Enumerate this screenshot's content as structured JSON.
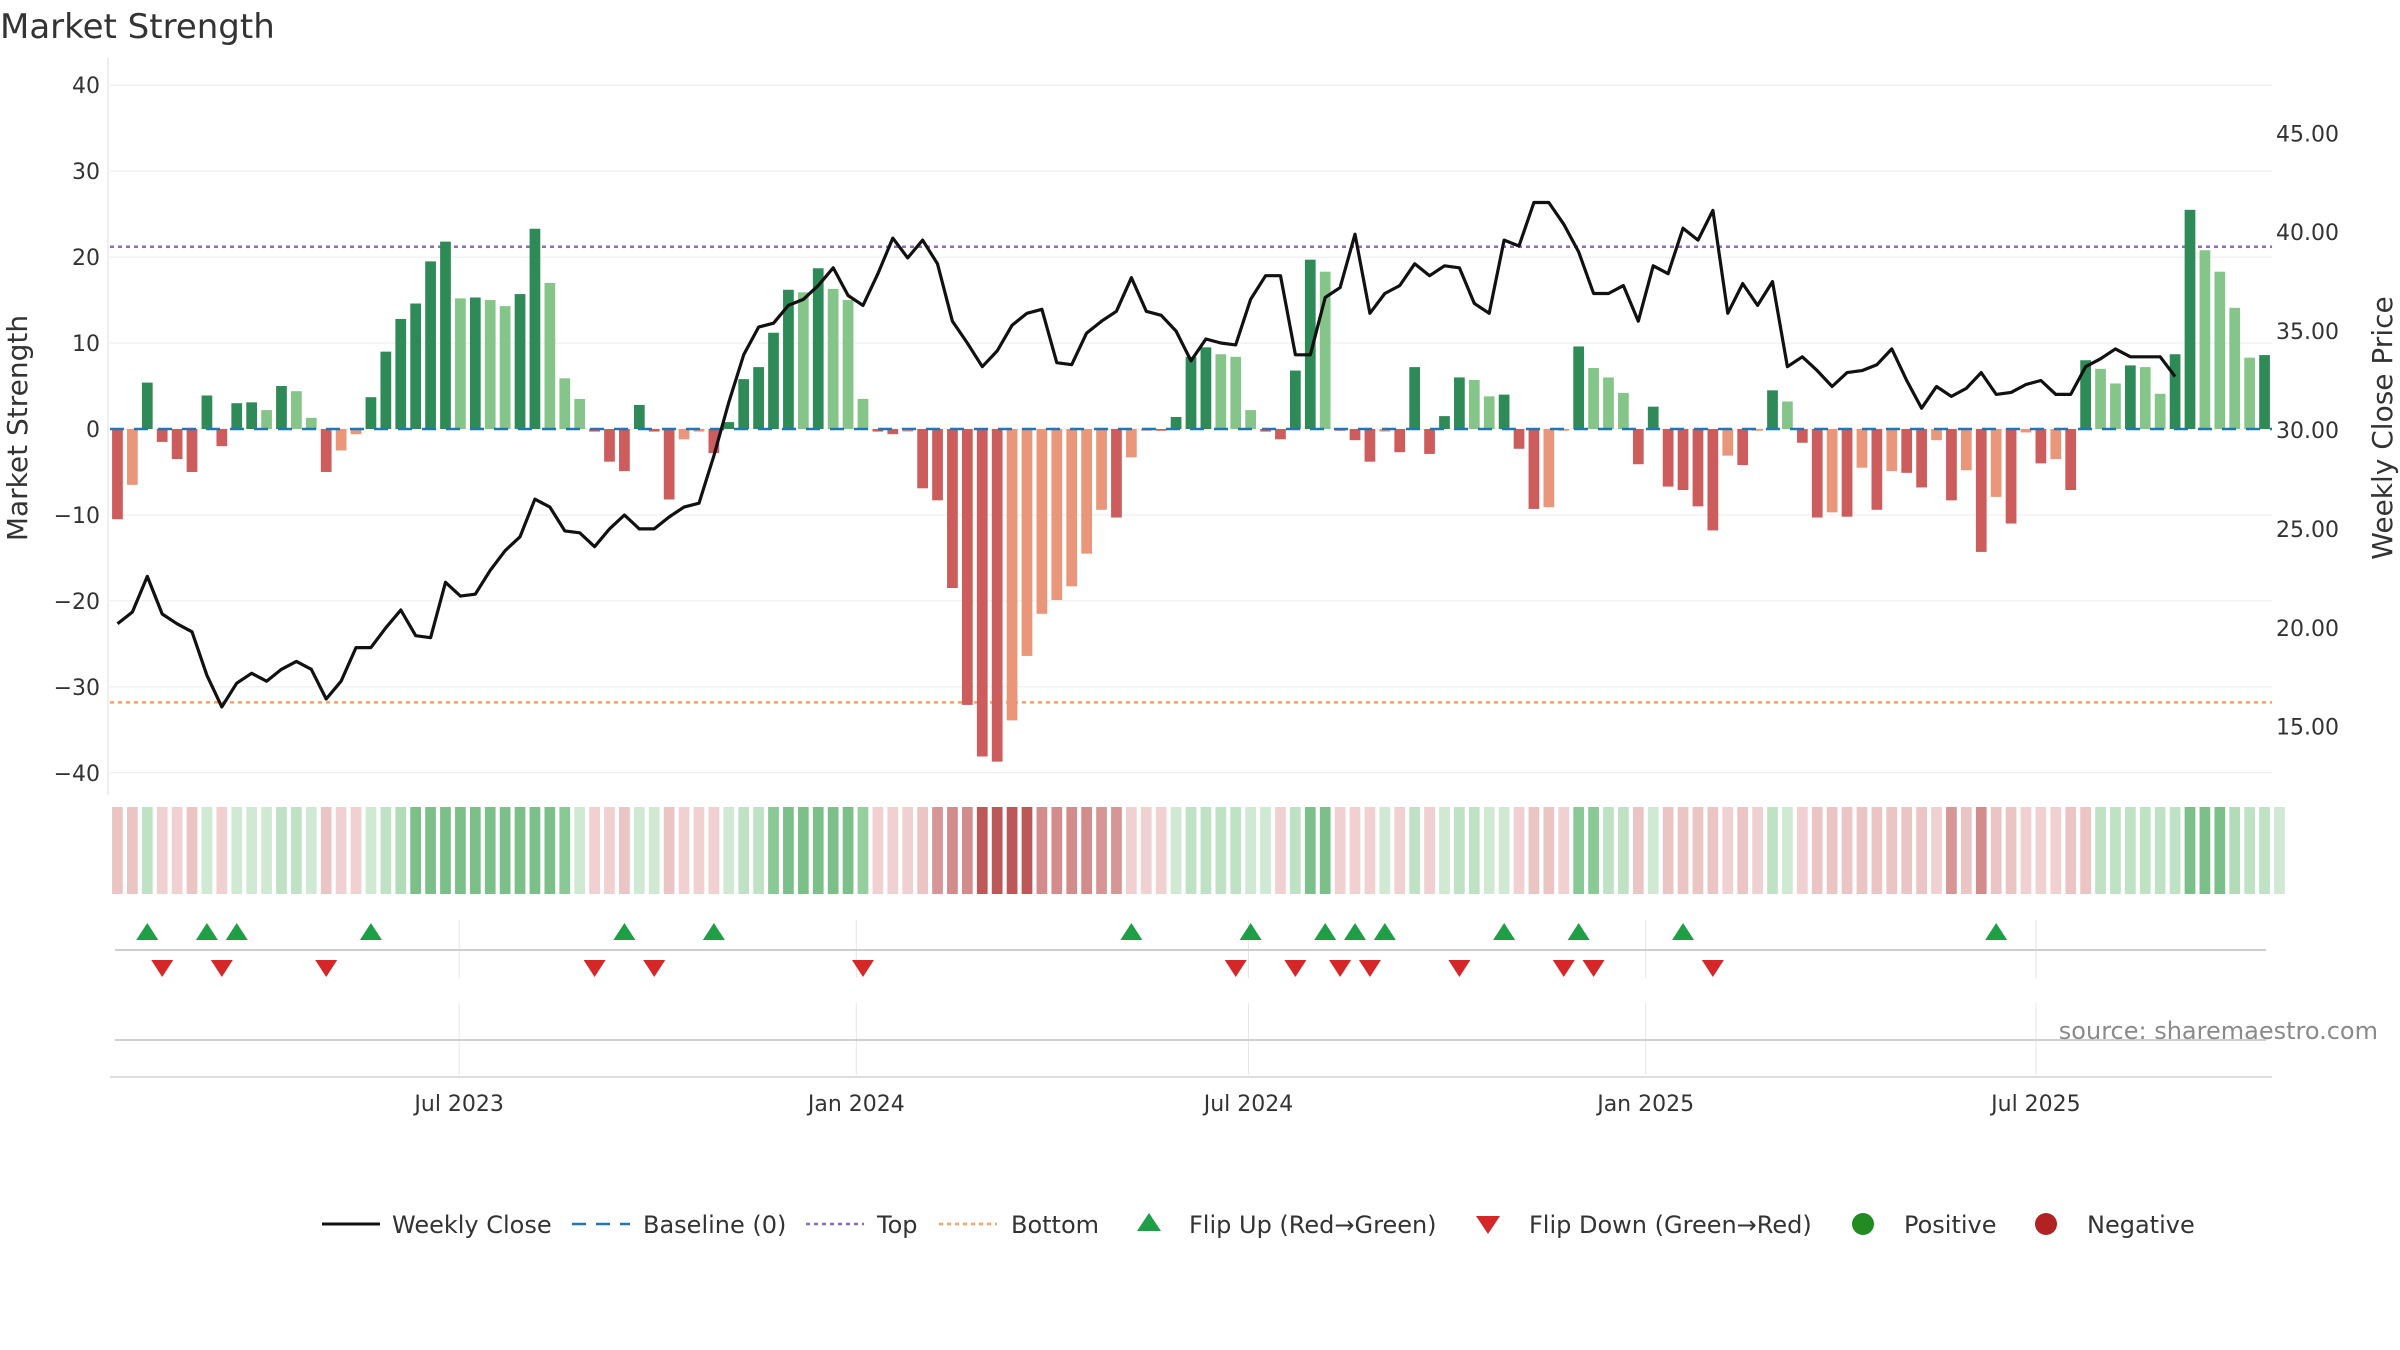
{
  "title": "Market Strength",
  "source": "source: sharemaestro.com",
  "colors": {
    "green_dark": "#2e8b57",
    "green_light": "#86c58a",
    "red_dark": "#cd5c5c",
    "red_light": "#e9967a",
    "close_line": "#111111",
    "baseline": "#1f77b4",
    "top": "#9467bd",
    "bottom": "#f4a460",
    "flip_up": "#1e9e45",
    "flip_down": "#d62728",
    "positive": "#228b22",
    "negative": "#b22222"
  },
  "chart_data": {
    "type": "bar",
    "title": "Market Strength",
    "ylabel_left": "Market Strength",
    "ylabel_right": "Weekly Close Price",
    "ylim_left": [
      -42,
      42
    ],
    "ylim_right": [
      11.8,
      48.3
    ],
    "y_ticks_left": [
      "−40",
      "−30",
      "−20",
      "−10",
      "0",
      "10",
      "20",
      "30",
      "40"
    ],
    "y_ticks_right": [
      "15.00",
      "20.00",
      "25.00",
      "30.00",
      "35.00",
      "40.00",
      "45.00"
    ],
    "x_ticks": [
      "Jul 2023",
      "Jan 2024",
      "Jul 2024",
      "Jan 2025",
      "Jul 2025"
    ],
    "top_line": 21.2,
    "bottom_line": -31.8,
    "baseline": 0,
    "grid": true,
    "legend_position": "bottom",
    "legend": [
      {
        "key": "weekly_close",
        "label": "Weekly Close"
      },
      {
        "key": "baseline",
        "label": "Baseline (0)"
      },
      {
        "key": "top",
        "label": "Top"
      },
      {
        "key": "bottom",
        "label": "Bottom"
      },
      {
        "key": "flip_up",
        "label": "Flip Up (Red→Green)"
      },
      {
        "key": "flip_down",
        "label": "Flip Down (Green→Red)"
      },
      {
        "key": "positive",
        "label": "Positive"
      },
      {
        "key": "negative",
        "label": "Negative"
      }
    ],
    "strength": [
      -10.5,
      -6.5,
      5.4,
      -1.5,
      -3.5,
      -5,
      3.9,
      -2,
      3,
      3.1,
      2.2,
      5,
      4.4,
      1.3,
      -5,
      -2.5,
      -0.6,
      3.7,
      9,
      12.8,
      14.6,
      19.5,
      21.8,
      15.2,
      15.3,
      15,
      14.3,
      15.7,
      23.3,
      17,
      5.9,
      3.5,
      -0.3,
      -3.8,
      -4.9,
      2.8,
      -0.3,
      -8.2,
      -1.2,
      -0.3,
      -2.8,
      0.8,
      5.8,
      7.2,
      11.2,
      16.2,
      15.9,
      18.7,
      16.3,
      15,
      3.5,
      -0.3,
      -0.6,
      -0.3,
      -6.9,
      -8.3,
      -18.5,
      -32.1,
      -38.1,
      -38.7,
      -33.9,
      -26.4,
      -21.5,
      -19.9,
      -18.3,
      -14.5,
      -9.4,
      -10.3,
      -3.3,
      -0.2,
      -0.2,
      1.4,
      8.4,
      9.5,
      8.7,
      8.4,
      2.2,
      -0.3,
      -1.2,
      6.8,
      19.7,
      18.3,
      -0.2,
      -1.3,
      -3.8,
      -0.3,
      -2.7,
      7.2,
      -2.9,
      1.5,
      6,
      5.7,
      3.8,
      4,
      -2.3,
      -9.3,
      -9.1,
      -0.2,
      9.6,
      7.1,
      6,
      4.2,
      -4.1,
      2.6,
      -6.7,
      -7.1,
      -9,
      -11.8,
      -3.1,
      -4.2,
      -0.2,
      4.5,
      3.2,
      -1.6,
      -10.3,
      -9.7,
      -10.2,
      -4.5,
      -9.4,
      -4.9,
      -5.1,
      -6.8,
      -1.3,
      -8.3,
      -4.8,
      -14.3,
      -7.9,
      -11,
      -0.4,
      -4,
      -3.5,
      -7.1,
      8,
      7,
      5.3,
      7.4,
      7.2,
      4.1,
      8.7,
      25.5,
      20.8,
      18.3,
      14.1,
      8.3,
      8.6
    ],
    "weekly_close": [
      20.2,
      20.8,
      22.6,
      20.7,
      20.2,
      19.8,
      17.6,
      16,
      17.2,
      17.7,
      17.3,
      17.9,
      18.3,
      17.9,
      16.4,
      17.3,
      19,
      19,
      20,
      20.9,
      19.6,
      19.5,
      22.3,
      21.6,
      21.7,
      22.9,
      23.9,
      24.6,
      26.5,
      26.1,
      24.9,
      24.8,
      24.1,
      25,
      25.7,
      25,
      25,
      25.6,
      26.1,
      26.3,
      28.7,
      31.4,
      33.8,
      35.2,
      35.4,
      36.3,
      36.6,
      37.3,
      38.2,
      36.8,
      36.3,
      37.9,
      39.7,
      38.7,
      39.6,
      38.4,
      35.5,
      34.4,
      33.2,
      34,
      35.3,
      35.9,
      36.1,
      33.4,
      33.3,
      34.9,
      35.5,
      36,
      37.7,
      36,
      35.8,
      35,
      33.5,
      34.6,
      34.4,
      34.3,
      36.6,
      37.8,
      37.8,
      33.8,
      33.8,
      36.7,
      37.2,
      39.9,
      35.9,
      36.9,
      37.3,
      38.4,
      37.8,
      38.3,
      38.2,
      36.4,
      35.9,
      39.6,
      39.3,
      41.5,
      41.5,
      40.4,
      39,
      36.9,
      36.9,
      37.3,
      35.5,
      38.3,
      37.9,
      40.2,
      39.6,
      41.1,
      35.9,
      37.4,
      36.3,
      37.5,
      33.2,
      33.7,
      33,
      32.2,
      32.9,
      33,
      33.3,
      34.1,
      32.5,
      31.1,
      32.2,
      31.7,
      32.1,
      32.9,
      31.8,
      31.9,
      32.3,
      32.5,
      31.8,
      31.8,
      33.2,
      33.6,
      34.1,
      33.7,
      33.7,
      33.7,
      32.7
    ]
  },
  "regime_strip": [
    -1,
    -1,
    1,
    -1,
    -1,
    -1,
    1,
    -1,
    1,
    1,
    1,
    1,
    1,
    1,
    -1,
    -1,
    -1,
    1,
    1,
    1,
    2,
    2,
    2,
    2,
    2,
    2,
    2,
    2,
    2,
    2,
    2,
    1,
    -1,
    -1,
    -1,
    1,
    1,
    -1,
    -1,
    -1,
    -1,
    1,
    1,
    1,
    2,
    2,
    2,
    2,
    2,
    2,
    2,
    -1,
    -1,
    -1,
    -1,
    -2,
    -2,
    -2,
    -3,
    -3,
    -3,
    -3,
    -2,
    -2,
    -2,
    -2,
    -2,
    -2,
    -1,
    -1,
    -1,
    1,
    1,
    1,
    1,
    1,
    1,
    1,
    -1,
    1,
    2,
    2,
    -1,
    -1,
    -1,
    1,
    -1,
    1,
    -1,
    1,
    1,
    1,
    1,
    1,
    -1,
    -1,
    -1,
    -1,
    2,
    2,
    1,
    1,
    -1,
    1,
    -1,
    -1,
    -1,
    -1,
    -1,
    -1,
    -1,
    1,
    1,
    -1,
    -1,
    -1,
    -1,
    -1,
    -1,
    -1,
    -1,
    -1,
    -1,
    -2,
    -1,
    -2,
    -1,
    -1,
    -1,
    -1,
    -1,
    -1,
    -1,
    1,
    1,
    1,
    1,
    1,
    1,
    2,
    2,
    2,
    1,
    1,
    1,
    1
  ],
  "flip_up_idx": [
    2,
    6,
    8,
    17,
    34,
    40,
    68,
    76,
    81,
    83,
    85,
    93,
    98,
    105,
    126
  ],
  "flip_down_idx": [
    3,
    7,
    14,
    32,
    36,
    50,
    75,
    79,
    82,
    84,
    90,
    97,
    99,
    107
  ]
}
